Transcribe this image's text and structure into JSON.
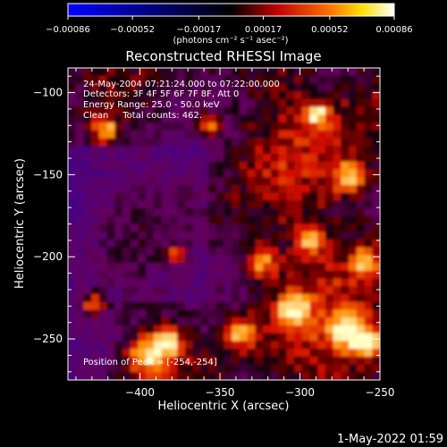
{
  "chart_data": {
    "type": "heatmap",
    "title": "Reconstructed RHESSI Image",
    "xlabel": "Heliocentric X (arcsec)",
    "ylabel": "Heliocentric Y (arcsec)",
    "xlim": [
      -445,
      -250
    ],
    "ylim": [
      -275,
      -85
    ],
    "x_ticks": [
      -400,
      -350,
      -300,
      -250
    ],
    "x_tick_labels": [
      "−400",
      "−350",
      "−300",
      "−250"
    ],
    "y_ticks": [
      -250,
      -200,
      -150,
      -100
    ],
    "y_tick_labels": [
      "−250",
      "−200",
      "−150",
      "−100"
    ],
    "grid": false,
    "colorbar": {
      "range": [
        -0.00086,
        0.00086
      ],
      "ticks": [
        -0.00086,
        -0.00052,
        -0.00017,
        0.00017,
        0.00052,
        0.00086
      ],
      "tick_labels": [
        "−0.00086",
        "−0.00052",
        "−0.00017",
        "0.00017",
        "0.00052",
        "0.00086"
      ],
      "unit_label": "(photons cm⁻² s⁻¹ asec⁻²)",
      "colormap": [
        "#0000ff",
        "#000000",
        "#ff0000",
        "#ffff00",
        "#ffffff"
      ]
    },
    "annotations": {
      "time_range": "24-May-2004 07:21:24.000 to 07:22:00.000",
      "detectors": "Detectors: 3F 4F 5F 6F 7F 8F, Att 0",
      "energy_range": "Energy Range: 25.0 - 50.0 keV",
      "method": "Clean     Total counts: 462.",
      "peak": "Position of Peak = [-254,-254]"
    },
    "peak_position": [
      -254,
      -254
    ],
    "timestamp": "1-May-2022 01:59"
  }
}
